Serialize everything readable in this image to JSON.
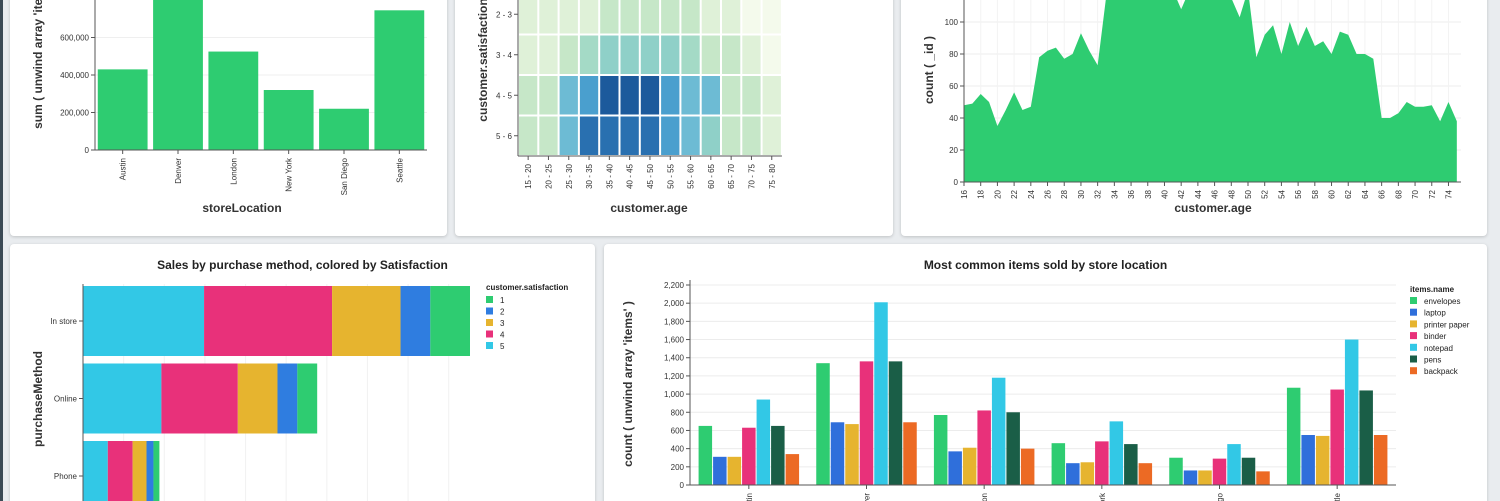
{
  "charts": [
    {
      "id": "store-sum",
      "type": "bar",
      "title": "",
      "xlabel": "storeLocation",
      "ylabel": "sum ( unwind array 'items' )",
      "categories": [
        "Austin",
        "Denver",
        "London",
        "New York",
        "San Diego",
        "Seattle"
      ],
      "values": [
        430000,
        800000,
        525000,
        320000,
        220000,
        745000
      ],
      "ylim": [
        0,
        800000
      ],
      "yticks": [
        "0",
        "200,000",
        "400,000",
        "600,000"
      ],
      "ytick_values": [
        0,
        200000,
        400000,
        600000
      ],
      "color": "#2ecc71"
    },
    {
      "id": "satisfaction-heatmap",
      "type": "heatmap",
      "xlabel": "customer.age",
      "ylabel": "customer.satisfaction",
      "x_categories": [
        "15 - 20",
        "20 - 25",
        "25 - 30",
        "30 - 35",
        "35 - 40",
        "40 - 45",
        "45 - 50",
        "50 - 55",
        "55 - 60",
        "60 - 65",
        "65 - 70",
        "70 - 75",
        "75 - 80"
      ],
      "y_categories": [
        "2 - 3",
        "3 - 4",
        "4 - 5",
        "5 - 6"
      ],
      "values": [
        [
          1,
          1,
          1,
          1,
          2,
          2,
          2,
          2,
          2,
          1,
          1,
          0.5,
          0.3
        ],
        [
          1,
          1,
          2,
          3,
          4,
          5,
          5,
          4,
          3,
          2,
          2,
          1,
          0.5
        ],
        [
          2,
          2,
          6,
          7,
          9,
          9,
          9,
          7,
          6,
          6,
          2,
          2,
          1
        ],
        [
          2,
          2,
          6,
          8,
          8,
          8,
          8,
          7,
          6,
          5,
          2,
          2,
          1
        ]
      ]
    },
    {
      "id": "age-count",
      "type": "area",
      "xlabel": "customer.age",
      "ylabel": "count ( _id )",
      "x": [
        16,
        17,
        18,
        19,
        20,
        21,
        22,
        23,
        24,
        25,
        26,
        27,
        28,
        29,
        30,
        31,
        32,
        33,
        34,
        35,
        36,
        37,
        38,
        39,
        40,
        41,
        42,
        43,
        44,
        45,
        46,
        47,
        48,
        49,
        50,
        51,
        52,
        53,
        54,
        55,
        56,
        57,
        58,
        59,
        60,
        61,
        62,
        63,
        64,
        65,
        66,
        67,
        68,
        69,
        70,
        71,
        72,
        73,
        74,
        75
      ],
      "y": [
        48,
        49,
        55,
        50,
        35,
        45,
        56,
        45,
        47,
        78,
        82,
        84,
        77,
        80,
        93,
        82,
        73,
        115,
        140,
        150,
        145,
        125,
        120,
        118,
        115,
        120,
        108,
        120,
        130,
        125,
        140,
        135,
        115,
        103,
        120,
        78,
        92,
        98,
        80,
        100,
        85,
        97,
        85,
        88,
        80,
        94,
        92,
        80,
        80,
        77,
        40,
        40,
        43,
        50,
        47,
        47,
        48,
        38,
        50,
        38
      ],
      "xticks": [
        16,
        18,
        20,
        22,
        24,
        26,
        28,
        30,
        32,
        34,
        36,
        38,
        40,
        42,
        44,
        46,
        48,
        50,
        52,
        54,
        56,
        58,
        60,
        62,
        64,
        66,
        68,
        70,
        72,
        74
      ],
      "yticks": [
        0,
        20,
        40,
        60,
        80,
        100
      ],
      "ylim": [
        0,
        145
      ],
      "color": "#2ecc71"
    },
    {
      "id": "purchase-method",
      "type": "bar",
      "orientation": "horizontal-stacked",
      "title": "Sales by purchase method, colored by Satisfaction",
      "ylabel": "purchaseMethod",
      "categories": [
        "In store",
        "Online",
        "Phone"
      ],
      "legend_title": "customer.satisfaction",
      "series": [
        {
          "name": "5",
          "color": "#32c8e6",
          "values": [
            1220,
            790,
            250
          ]
        },
        {
          "name": "4",
          "color": "#e8317a",
          "values": [
            1290,
            770,
            250
          ]
        },
        {
          "name": "3",
          "color": "#e6b42f",
          "values": [
            690,
            400,
            140
          ]
        },
        {
          "name": "2",
          "color": "#2f7de0",
          "values": [
            300,
            200,
            70
          ]
        },
        {
          "name": "1",
          "color": "#2ecc71",
          "values": [
            400,
            200,
            60
          ]
        }
      ],
      "legend_order": [
        "1",
        "2",
        "3",
        "4",
        "5"
      ]
    },
    {
      "id": "items-by-store",
      "type": "bar",
      "title": "Most common items sold by store location",
      "ylabel": "count ( unwind array 'items' )",
      "categories": [
        "Austin",
        "Denver",
        "London",
        "New York",
        "San Diego",
        "Seattle"
      ],
      "category_labels_visible": [
        "stin",
        "ver",
        "lon",
        "ork",
        "go",
        "ttle"
      ],
      "ylim": [
        0,
        2200
      ],
      "yticks": [
        "0",
        "200",
        "400",
        "600",
        "800",
        "1,000",
        "1,200",
        "1,400",
        "1,600",
        "1,800",
        "2,000",
        "2,200"
      ],
      "ytick_values": [
        0,
        200,
        400,
        600,
        800,
        1000,
        1200,
        1400,
        1600,
        1800,
        2000,
        2200
      ],
      "legend_title": "items.name",
      "series": [
        {
          "name": "envelopes",
          "color": "#2ecc71",
          "values": [
            650,
            1340,
            770,
            460,
            300,
            1070
          ]
        },
        {
          "name": "laptop",
          "color": "#2f6fdb",
          "values": [
            310,
            690,
            370,
            240,
            160,
            550
          ]
        },
        {
          "name": "printer paper",
          "color": "#e6b42f",
          "values": [
            310,
            670,
            410,
            250,
            160,
            540
          ]
        },
        {
          "name": "binder",
          "color": "#e8317a",
          "values": [
            630,
            1360,
            820,
            480,
            290,
            1050
          ]
        },
        {
          "name": "notepad",
          "color": "#32c8e6",
          "values": [
            940,
            2010,
            1180,
            700,
            450,
            1600
          ]
        },
        {
          "name": "pens",
          "color": "#1a5e47",
          "values": [
            650,
            1360,
            800,
            450,
            300,
            1040
          ]
        },
        {
          "name": "backpack",
          "color": "#ec6a24",
          "values": [
            340,
            690,
            400,
            240,
            150,
            550
          ]
        }
      ]
    }
  ]
}
